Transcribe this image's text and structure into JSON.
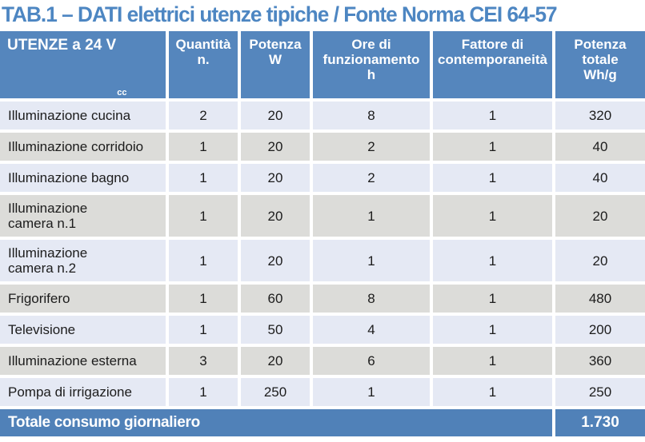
{
  "title": "TAB.1 – DATI elettrici utenze tipiche / Fonte Norma CEI 64-57",
  "colors": {
    "title_blue": "#4d86c2",
    "header_blue": "#5586bd",
    "total_blue": "#5081b8",
    "row_lavender": "#e5e9f4",
    "row_gray": "#dcdcd9",
    "text_dark": "#1c1c1c",
    "header_text": "#ffffff"
  },
  "table": {
    "columns": [
      {
        "label": "UTENZE a 24 V",
        "subscript": "cc"
      },
      {
        "label": "Quantità\nn."
      },
      {
        "label": "Potenza\nW"
      },
      {
        "label": "Ore di\nfunzionamento\nh"
      },
      {
        "label": "Fattore di\ncontemporaneità"
      },
      {
        "label": "Potenza\ntotale\nWh/g"
      }
    ],
    "rows": [
      {
        "utenza": "Illuminazione cucina",
        "values": [
          "2",
          "20",
          "8",
          "1",
          "320"
        ]
      },
      {
        "utenza": "Illuminazione corridoio",
        "values": [
          "1",
          "20",
          "2",
          "1",
          "40"
        ]
      },
      {
        "utenza": "Illuminazione bagno",
        "values": [
          "1",
          "20",
          "2",
          "1",
          "40"
        ]
      },
      {
        "utenza": "Illuminazione\ncamera n.1",
        "values": [
          "1",
          "20",
          "1",
          "1",
          "20"
        ]
      },
      {
        "utenza": "Illuminazione\ncamera n.2",
        "values": [
          "1",
          "20",
          "1",
          "1",
          "20"
        ]
      },
      {
        "utenza": "Frigorifero",
        "values": [
          "1",
          "60",
          "8",
          "1",
          "480"
        ]
      },
      {
        "utenza": "Televisione",
        "values": [
          "1",
          "50",
          "4",
          "1",
          "200"
        ]
      },
      {
        "utenza": "Illuminazione esterna",
        "values": [
          "3",
          "20",
          "6",
          "1",
          "360"
        ]
      },
      {
        "utenza": "Pompa di irrigazione",
        "values": [
          "1",
          "250",
          "1",
          "1",
          "250"
        ]
      }
    ],
    "total": {
      "label": "Totale consumo giornaliero",
      "value": "1.730"
    }
  }
}
